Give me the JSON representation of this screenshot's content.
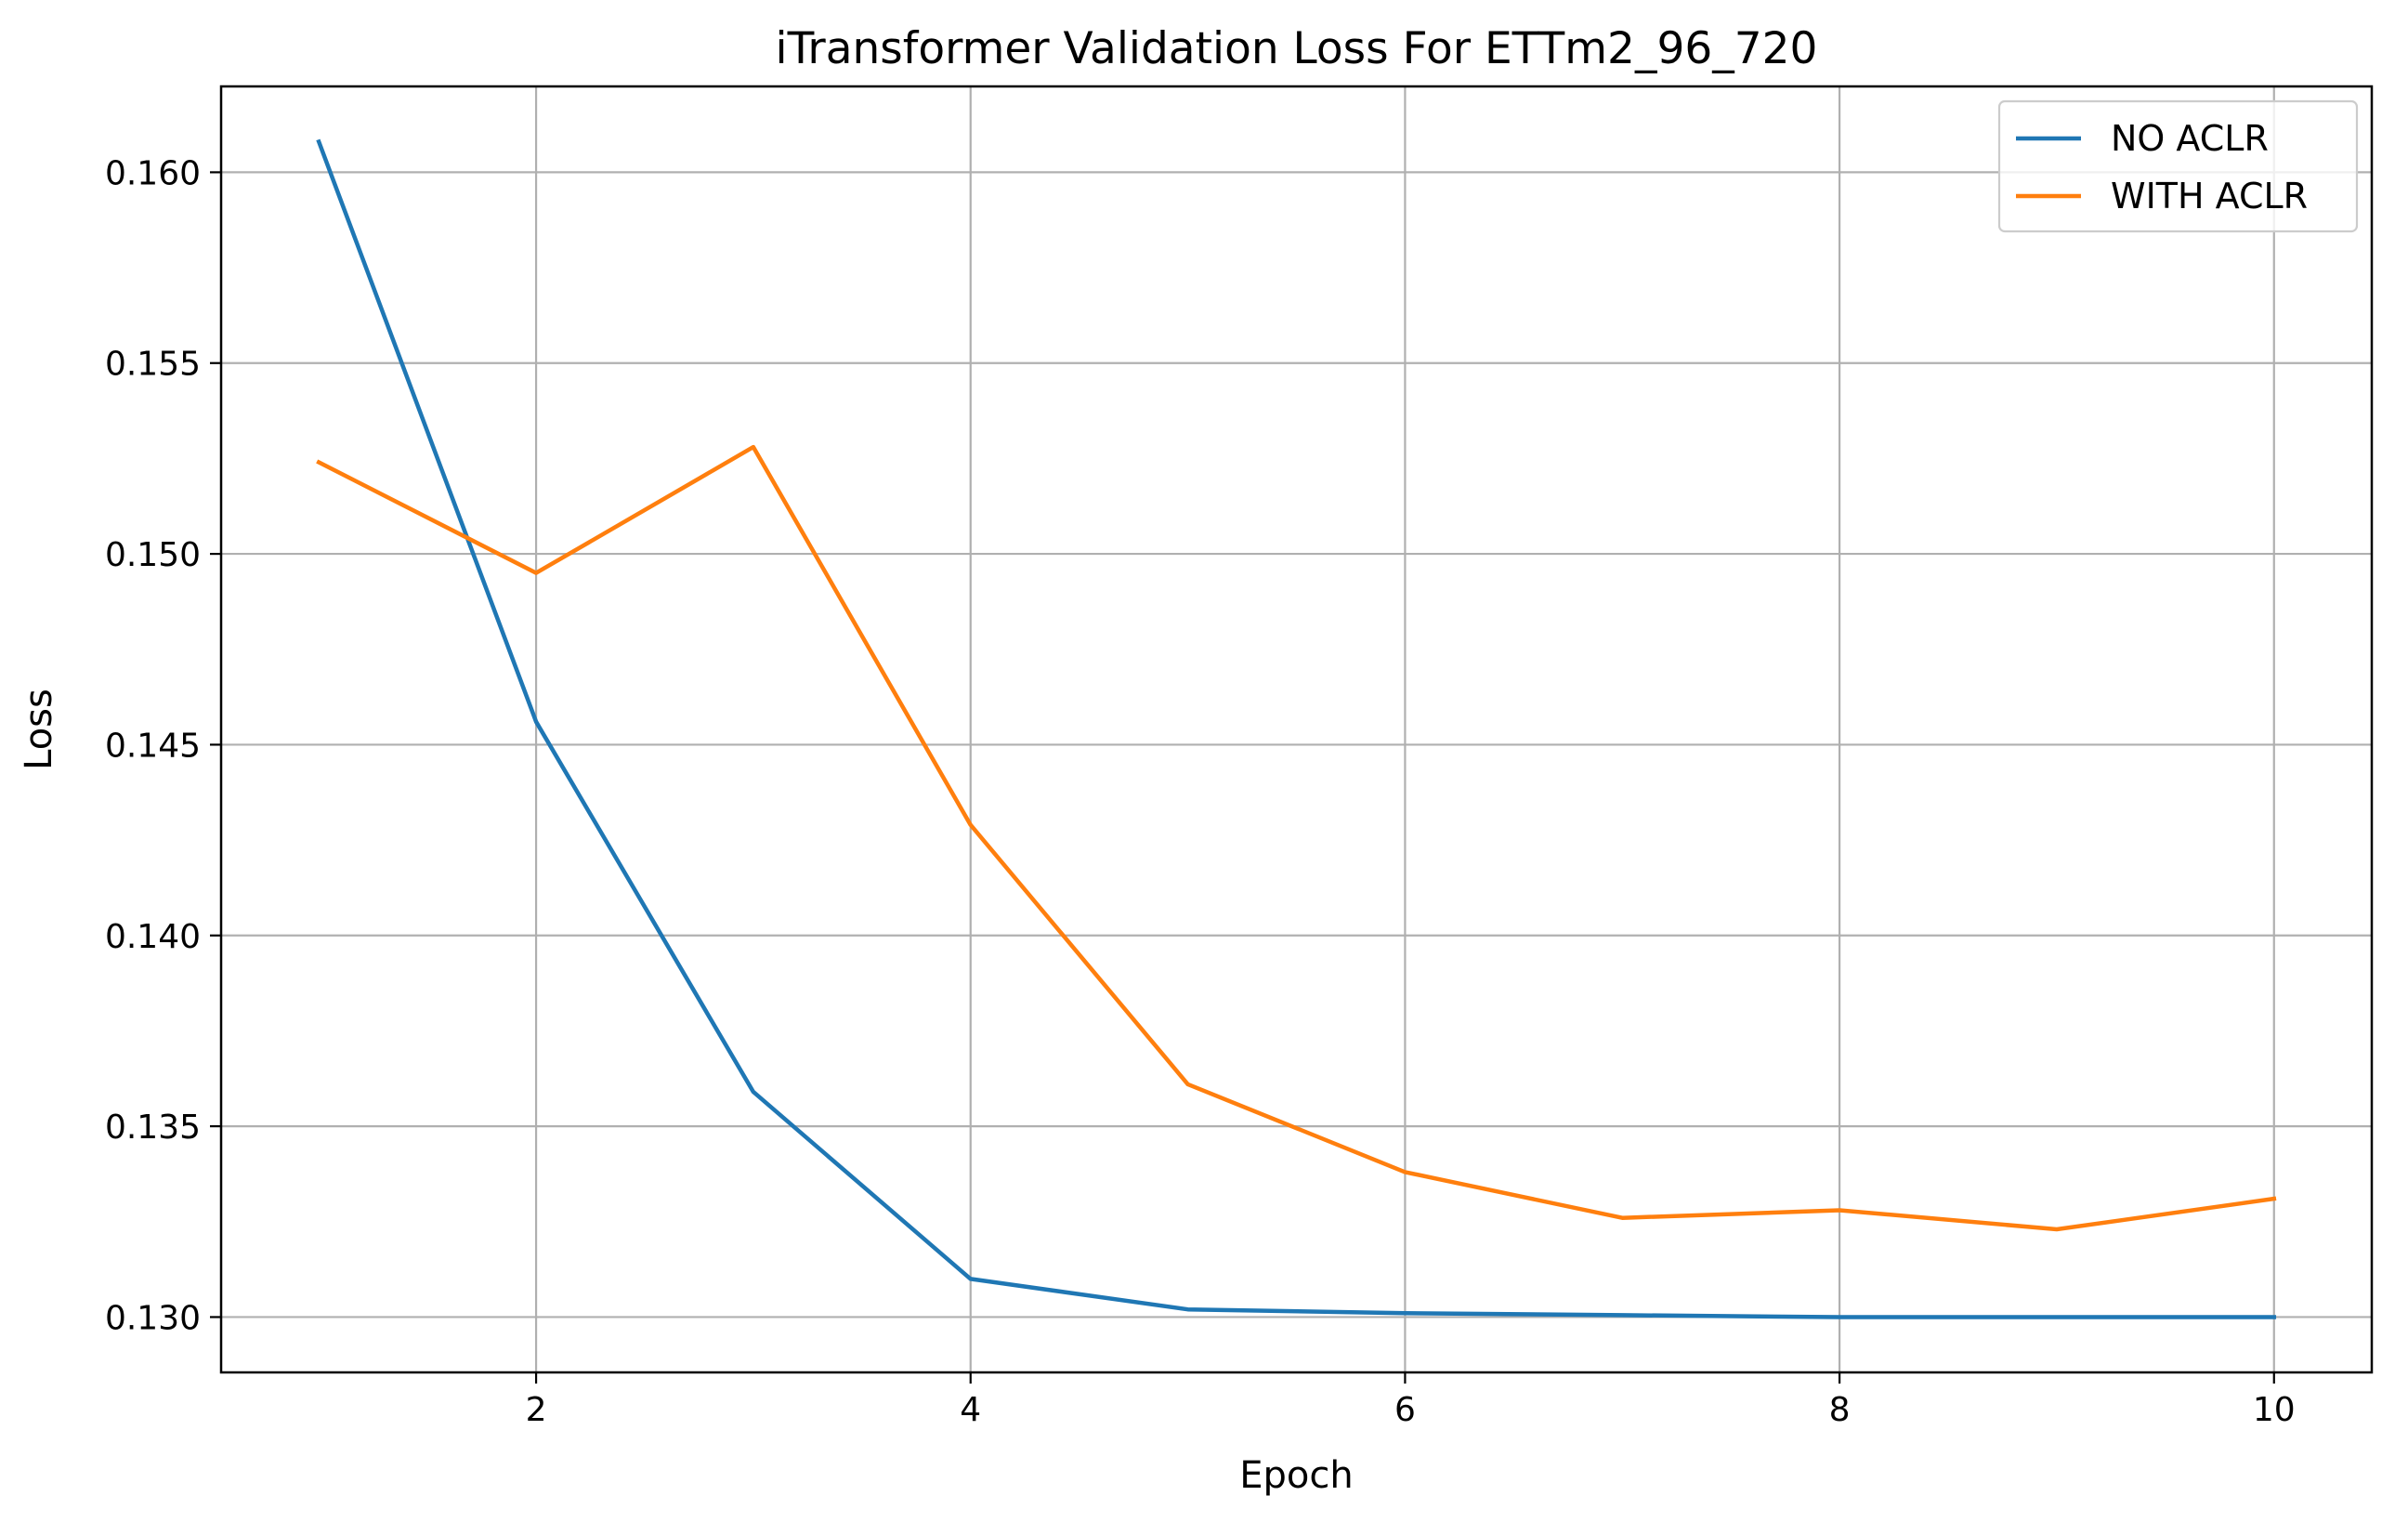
{
  "chart_data": {
    "type": "line",
    "title": "iTransformer Validation Loss For ETTm2_96_720",
    "xlabel": "Epoch",
    "ylabel": "Loss",
    "xlim": [
      0.55,
      10.45
    ],
    "ylim": [
      0.12855,
      0.16225
    ],
    "x_ticks": [
      2,
      4,
      6,
      8,
      10
    ],
    "x_tick_labels": [
      "2",
      "4",
      "6",
      "8",
      "10"
    ],
    "y_ticks": [
      0.13,
      0.135,
      0.14,
      0.145,
      0.15,
      0.155,
      0.16
    ],
    "y_tick_labels": [
      "0.130",
      "0.135",
      "0.140",
      "0.145",
      "0.150",
      "0.155",
      "0.160"
    ],
    "grid": true,
    "legend_position": "top-right",
    "x": [
      1,
      2,
      3,
      4,
      5,
      6,
      7,
      8,
      9,
      10
    ],
    "series": [
      {
        "name": "NO ACLR",
        "color": "#1f77b4",
        "values": [
          0.1608,
          0.1456,
          0.1359,
          0.131,
          0.1302,
          0.1301,
          0.13005,
          0.13,
          0.13,
          0.13
        ]
      },
      {
        "name": "WITH ACLR",
        "color": "#ff7f0e",
        "values": [
          0.1524,
          0.1495,
          0.1528,
          0.1429,
          0.1361,
          0.1338,
          0.1326,
          0.1328,
          0.1323,
          0.1331
        ]
      }
    ]
  }
}
